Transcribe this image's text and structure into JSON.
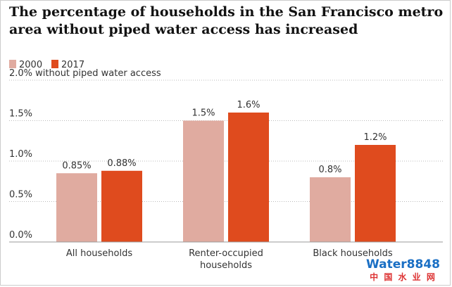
{
  "chart_data": {
    "type": "bar",
    "title": "The percentage of households in the San Francisco metro area without piped water access has increased",
    "categories": [
      "All households",
      "Renter-occupied households",
      "Black households"
    ],
    "series": [
      {
        "name": "2000",
        "color": "#e0aba0",
        "values": [
          0.85,
          1.5,
          0.8
        ],
        "value_labels": [
          "0.85%",
          "1.5%",
          "0.8%"
        ]
      },
      {
        "name": "2017",
        "color": "#df4b1e",
        "values": [
          0.88,
          1.6,
          1.2
        ],
        "value_labels": [
          "0.88%",
          "1.6%",
          "1.2%"
        ]
      }
    ],
    "ylim": [
      0,
      2
    ],
    "yticks": [
      {
        "value": 0,
        "label": "0.0%"
      },
      {
        "value": 0.5,
        "label": "0.5%"
      },
      {
        "value": 1,
        "label": "1.0%"
      },
      {
        "value": 1.5,
        "label": "1.5%"
      },
      {
        "value": 2,
        "label": "2.0% without piped water access"
      }
    ],
    "grid": true,
    "watermark": [
      "Water8848",
      "中 国 水 业 网"
    ]
  }
}
